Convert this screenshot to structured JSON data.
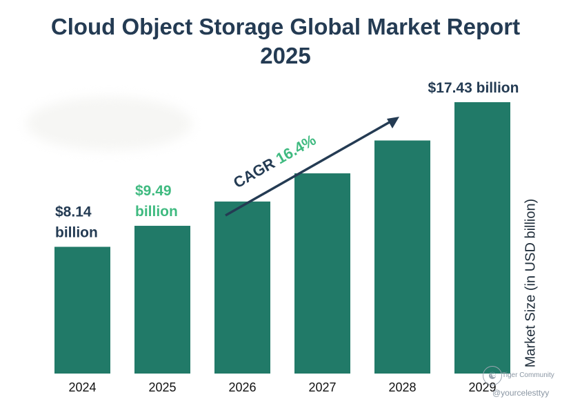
{
  "title_line1": "Cloud Object Storage Global Market Report",
  "title_line2": "2025",
  "cagr": {
    "label": "CAGR",
    "value": "16.4%"
  },
  "watermark": {
    "community": "Tiger Community",
    "user": "@yourcelesttyy"
  },
  "colors": {
    "bar": "#217a68",
    "dark": "#243b53",
    "accent": "#3fba80"
  },
  "chart_data": {
    "type": "bar",
    "title": "Cloud Object Storage Global Market Report 2025",
    "categories": [
      "2024",
      "2025",
      "2026",
      "2027",
      "2028",
      "2029"
    ],
    "values": [
      8.14,
      9.49,
      11.05,
      12.86,
      14.97,
      17.43
    ],
    "ylabel": "Market Size (in USD billion)",
    "ylim": [
      0,
      18.4
    ],
    "grid": false,
    "data_labels": [
      {
        "index": 0,
        "line1": "$8.14",
        "line2": "billion",
        "style": "dark"
      },
      {
        "index": 1,
        "line1": "$9.49",
        "line2": "billion",
        "style": "accent"
      },
      {
        "index": 5,
        "line1": "$17.43 billion",
        "line2": "",
        "style": "dark"
      }
    ]
  }
}
